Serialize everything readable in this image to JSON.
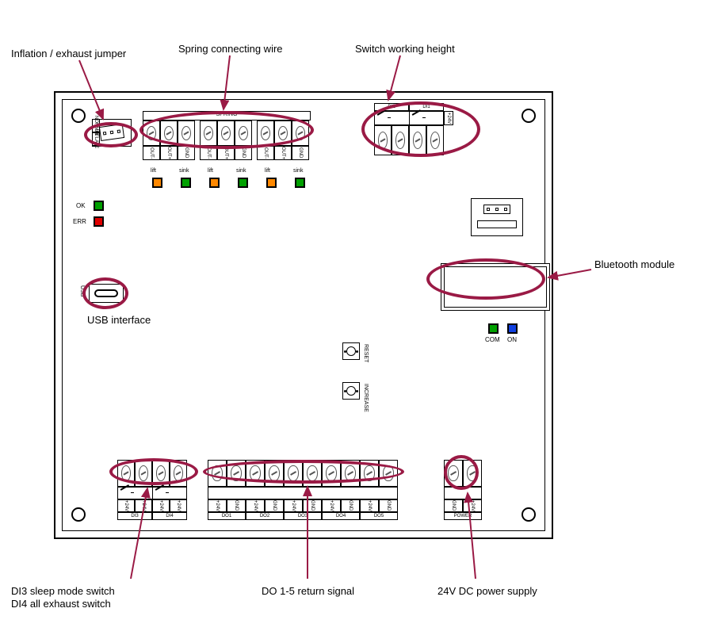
{
  "labels": {
    "inflation": "Inflation / exhaust jumper",
    "spring": "Spring connecting wire",
    "switch_height": "Switch working height",
    "bluetooth": "Bluetooth module",
    "usb": "USB interface",
    "di3di4_line1": "DI3 sleep mode switch",
    "di3di4_line2": "DI4 all exhaust switch",
    "do15": "DO 1-5 return signal",
    "power24v": "24V DC power supply"
  },
  "leds_status": {
    "ok_label": "OK",
    "ok_color": "#00a000",
    "err_label": "ERR",
    "err_color": "#e00000"
  },
  "top_leds": [
    {
      "label": "lift",
      "color": "#ff8800"
    },
    {
      "label": "sink",
      "color": "#00a000"
    },
    {
      "label": "lift",
      "color": "#ff8800"
    },
    {
      "label": "sink",
      "color": "#00a000"
    },
    {
      "label": "lift",
      "color": "#ff8800"
    },
    {
      "label": "sink",
      "color": "#00a000"
    }
  ],
  "com_leds": {
    "com_label": "COM",
    "com_color": "#00a000",
    "on_label": "ON",
    "on_color": "#1040e0"
  },
  "top_terminals": {
    "j1": {
      "pins": [
        "NORMAL",
        "INFLATE"
      ]
    },
    "spring_groups": [
      [
        "OUT-",
        "OUT+",
        "GND"
      ],
      [
        "OUT-",
        "OUT+",
        "GND"
      ],
      [
        "OUT-",
        "OUT+",
        "GND"
      ]
    ],
    "spring_back_label": "SPRING",
    "di_top": [
      "DI2",
      "DI1"
    ],
    "di_pins": [
      "+24V",
      "+24V"
    ]
  },
  "buttons": {
    "b1": "RESET",
    "b2": "INCREASE"
  },
  "bottom_terminals": {
    "di_pair": [
      "DI3",
      "DI4"
    ],
    "di_pins": [
      "+24V",
      "+24V"
    ],
    "do_groups": [
      "DO1",
      "DO2",
      "DO3",
      "DO4",
      "DO5"
    ],
    "do_pins": [
      "+24V",
      "GND"
    ],
    "power": {
      "name": "POWER",
      "pins": [
        "GND",
        "+24V"
      ]
    }
  },
  "colors": {
    "highlight": "#9a1a45",
    "board_stroke": "#000000"
  }
}
